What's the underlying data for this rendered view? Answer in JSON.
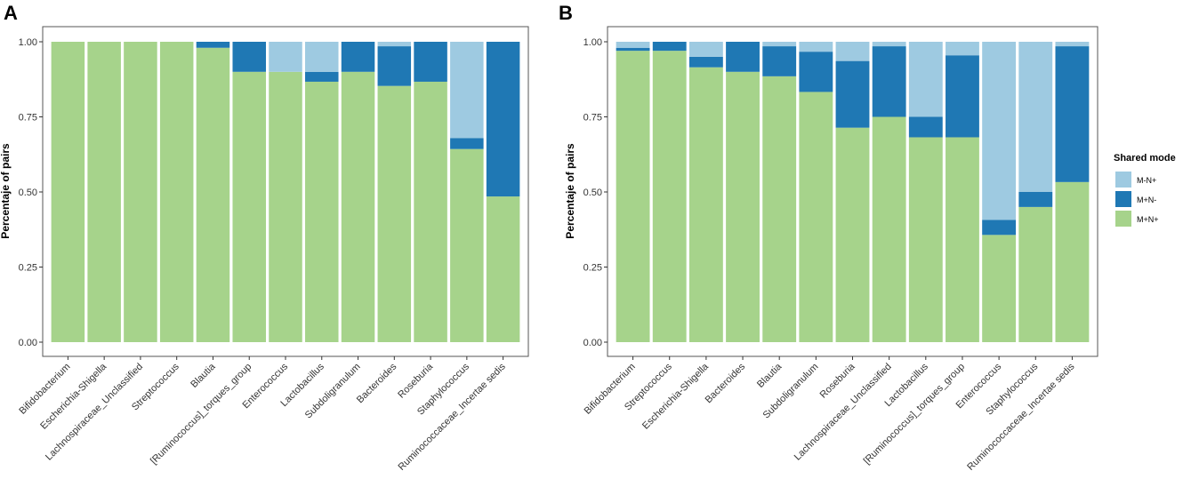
{
  "chart_data": [
    {
      "panel": "A",
      "type": "bar",
      "stacked": true,
      "ylabel": "Percentaje of pairs",
      "xlabel": "",
      "ylim": [
        0,
        1
      ],
      "yticks": [
        "0.00",
        "0.25",
        "0.50",
        "0.75",
        "1.00"
      ],
      "categories": [
        "Bifidobacterium",
        "Escherichia-Shigella",
        "Lachnospiraceae_Unclassified",
        "Streptococcus",
        "Blautia",
        "[Ruminococcus]_torques_group",
        "Enterococcus",
        "Lactobacillus",
        "Subdoligranulum",
        "Bacteroides",
        "Roseburia",
        "Staphylococcus",
        "Ruminococcaceae_Incertae sedis"
      ],
      "series": [
        {
          "name": "M+N+",
          "values": [
            1.0,
            1.0,
            1.0,
            1.0,
            0.98,
            0.9,
            0.9,
            0.867,
            0.9,
            0.853,
            0.867,
            0.643,
            0.485
          ]
        },
        {
          "name": "M+N-",
          "values": [
            0.0,
            0.0,
            0.0,
            0.0,
            0.02,
            0.1,
            0.0,
            0.033,
            0.1,
            0.132,
            0.133,
            0.036,
            0.515
          ]
        },
        {
          "name": "M-N+",
          "values": [
            0.0,
            0.0,
            0.0,
            0.0,
            0.0,
            0.0,
            0.1,
            0.1,
            0.0,
            0.015,
            0.0,
            0.321,
            0.0
          ]
        }
      ]
    },
    {
      "panel": "B",
      "type": "bar",
      "stacked": true,
      "ylabel": "Percentaje of pairs",
      "xlabel": "",
      "ylim": [
        0,
        1
      ],
      "yticks": [
        "0.00",
        "0.25",
        "0.50",
        "0.75",
        "1.00"
      ],
      "categories": [
        "Bifidobacterium",
        "Streptococcus",
        "Escherichia-Shigella",
        "Bacteroides",
        "Blautia",
        "Subdoligranulum",
        "Roseburia",
        "Lachnospiraceae_Unclassified",
        "Lactobacillus",
        "[Ruminococcus]_torques_group",
        "Enterococcus",
        "Staphylococcus",
        "Ruminococcaceae_Incertae sedis"
      ],
      "series": [
        {
          "name": "M+N+",
          "values": [
            0.97,
            0.97,
            0.915,
            0.9,
            0.885,
            0.833,
            0.714,
            0.75,
            0.682,
            0.682,
            0.357,
            0.45,
            0.533
          ]
        },
        {
          "name": "M+N-",
          "values": [
            0.01,
            0.03,
            0.035,
            0.1,
            0.1,
            0.134,
            0.222,
            0.235,
            0.068,
            0.273,
            0.05,
            0.05,
            0.452
          ]
        },
        {
          "name": "M-N+",
          "values": [
            0.02,
            0.0,
            0.05,
            0.0,
            0.015,
            0.033,
            0.064,
            0.015,
            0.25,
            0.045,
            0.593,
            0.5,
            0.015
          ]
        }
      ]
    }
  ],
  "legend": {
    "title": "Shared mode",
    "entries": [
      {
        "label": "M-N+",
        "color": "#9ecae1"
      },
      {
        "label": "M+N-",
        "color": "#1f78b4"
      },
      {
        "label": "M+N+",
        "color": "#a6d38b"
      }
    ]
  },
  "colors": {
    "M+N+": "#a6d38b",
    "M+N-": "#1f78b4",
    "M-N+": "#9ecae1",
    "frame": "#555555"
  }
}
